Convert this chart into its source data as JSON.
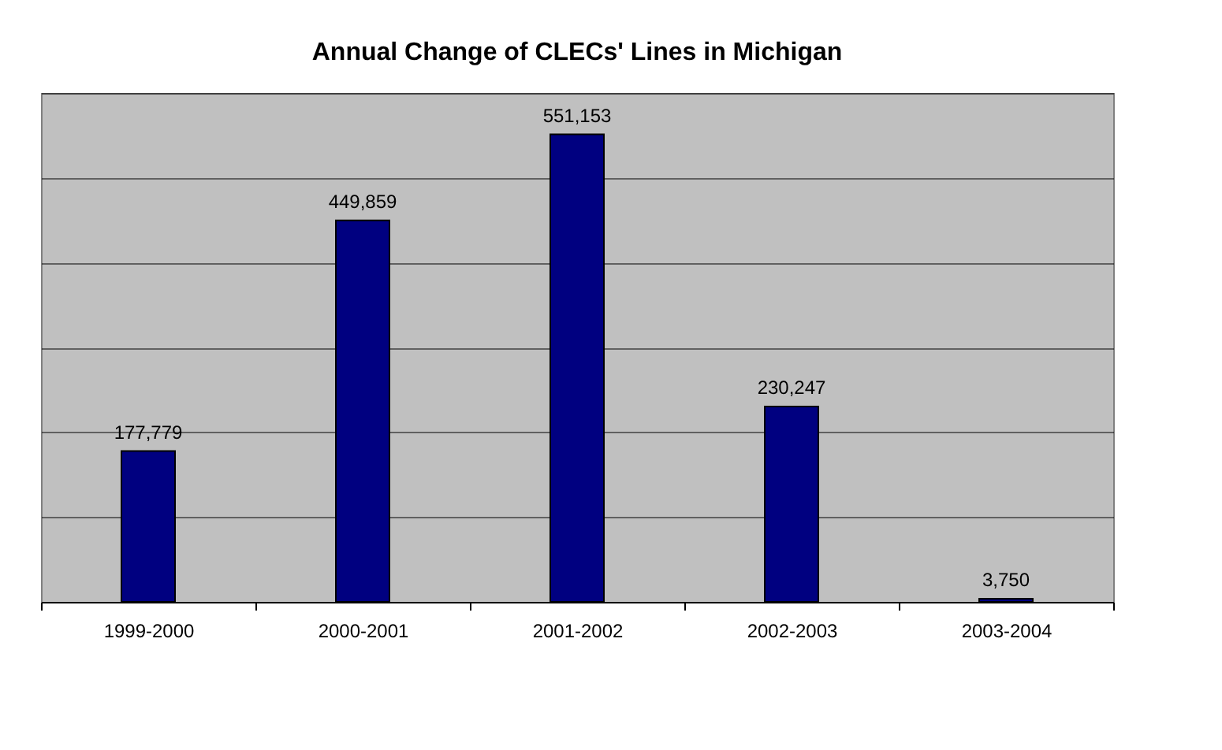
{
  "chart_data": {
    "type": "bar",
    "title": "Annual Change of CLECs' Lines in Michigan",
    "categories": [
      "1999-2000",
      "2000-2001",
      "2001-2002",
      "2002-2003",
      "2003-2004"
    ],
    "values": [
      177779,
      449859,
      551153,
      230247,
      3750
    ],
    "value_labels": [
      "177,779",
      "449,859",
      "551,153",
      "230,247",
      "3,750"
    ],
    "color": "#000080",
    "grid": "y"
  }
}
